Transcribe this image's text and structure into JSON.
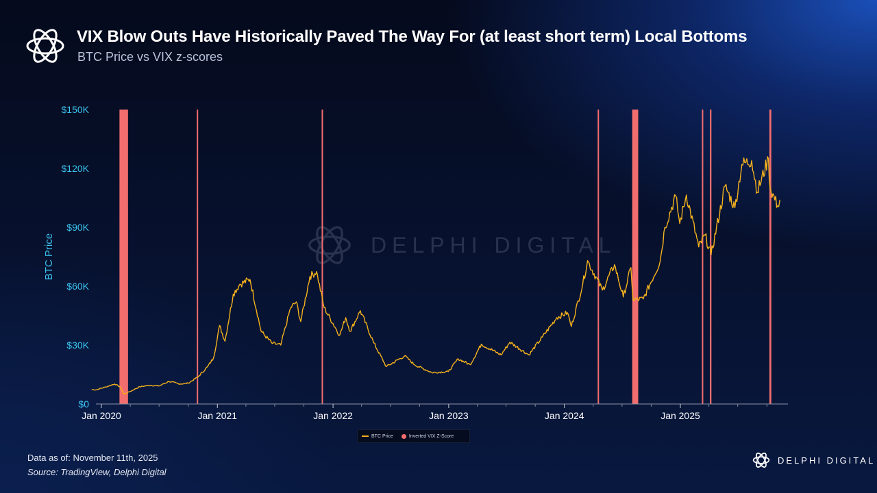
{
  "header": {
    "title": "VIX Blow Outs Have Historically Paved The Way For (at least short term) Local Bottoms",
    "subtitle": "BTC Price vs VIX z-scores"
  },
  "watermark": {
    "text": "DELPHI DIGITAL",
    "icon": "delphi-logo-icon"
  },
  "brand": {
    "name": "DELPHI DIGITAL",
    "icon": "delphi-logo-icon"
  },
  "footer": {
    "as_of": "Data as of: November 11th, 2025",
    "source": "Source: TradingView, Delphi Digital"
  },
  "colors": {
    "price_line": "#f5b21c",
    "vix_highlight": "#f26d6d",
    "axis_text": "#3cc4f0",
    "tick_text": "#ffffff"
  },
  "chart_data": {
    "type": "line",
    "ylabel": "BTC Price",
    "ylim": [
      0,
      150000
    ],
    "yticks": [
      0,
      30000,
      60000,
      90000,
      120000,
      150000
    ],
    "ytick_labels": [
      "$0",
      "$30K",
      "$60K",
      "$90K",
      "$120K",
      "$150K"
    ],
    "xlim": [
      "2019-12-01",
      "2025-12-01"
    ],
    "xticks": [
      "2020-01-01",
      "2021-01-01",
      "2022-01-01",
      "2023-01-01",
      "2024-01-01",
      "2025-01-01"
    ],
    "xtick_labels": [
      "Jan 2020",
      "Jan 2021",
      "Jan 2022",
      "Jan 2023",
      "Jan 2024",
      "Jan 2025"
    ],
    "grid": false,
    "legend_position": "bottom-center",
    "series": [
      {
        "name": "BTC Price",
        "type": "line",
        "points": [
          [
            "2019-12-01",
            7300
          ],
          [
            "2019-12-15",
            7200
          ],
          [
            "2020-01-15",
            8700
          ],
          [
            "2020-02-12",
            10200
          ],
          [
            "2020-03-01",
            8600
          ],
          [
            "2020-03-12",
            5000
          ],
          [
            "2020-04-01",
            6400
          ],
          [
            "2020-05-01",
            8800
          ],
          [
            "2020-06-01",
            9500
          ],
          [
            "2020-07-01",
            9200
          ],
          [
            "2020-08-01",
            11500
          ],
          [
            "2020-09-05",
            10200
          ],
          [
            "2020-10-01",
            10600
          ],
          [
            "2020-11-01",
            13800
          ],
          [
            "2020-12-01",
            19000
          ],
          [
            "2020-12-20",
            23500
          ],
          [
            "2021-01-08",
            40000
          ],
          [
            "2021-01-25",
            32000
          ],
          [
            "2021-02-20",
            56000
          ],
          [
            "2021-03-13",
            61000
          ],
          [
            "2021-04-14",
            63500
          ],
          [
            "2021-05-19",
            37000
          ],
          [
            "2021-06-22",
            31000
          ],
          [
            "2021-07-20",
            30000
          ],
          [
            "2021-08-20",
            49000
          ],
          [
            "2021-09-07",
            52000
          ],
          [
            "2021-09-21",
            42000
          ],
          [
            "2021-10-20",
            65000
          ],
          [
            "2021-11-10",
            67500
          ],
          [
            "2021-12-04",
            49000
          ],
          [
            "2022-01-22",
            35000
          ],
          [
            "2022-02-10",
            44000
          ],
          [
            "2022-02-24",
            37000
          ],
          [
            "2022-03-28",
            47500
          ],
          [
            "2022-05-10",
            31000
          ],
          [
            "2022-06-18",
            19000
          ],
          [
            "2022-08-15",
            24500
          ],
          [
            "2022-09-15",
            20000
          ],
          [
            "2022-11-09",
            16000
          ],
          [
            "2022-12-31",
            16500
          ],
          [
            "2023-01-31",
            23000
          ],
          [
            "2023-03-10",
            20000
          ],
          [
            "2023-04-14",
            30500
          ],
          [
            "2023-06-15",
            25000
          ],
          [
            "2023-07-13",
            31500
          ],
          [
            "2023-09-11",
            25000
          ],
          [
            "2023-10-23",
            34000
          ],
          [
            "2023-12-08",
            44000
          ],
          [
            "2024-01-11",
            46500
          ],
          [
            "2024-01-23",
            39500
          ],
          [
            "2024-02-28",
            61000
          ],
          [
            "2024-03-14",
            73000
          ],
          [
            "2024-04-30",
            58000
          ],
          [
            "2024-06-07",
            71000
          ],
          [
            "2024-07-05",
            54500
          ],
          [
            "2024-07-29",
            69500
          ],
          [
            "2024-08-05",
            53000
          ],
          [
            "2024-09-06",
            53500
          ],
          [
            "2024-10-29",
            72500
          ],
          [
            "2024-11-13",
            90000
          ],
          [
            "2024-12-17",
            106000
          ],
          [
            "2024-12-30",
            92000
          ],
          [
            "2025-01-20",
            106500
          ],
          [
            "2025-02-28",
            80000
          ],
          [
            "2025-03-20",
            86000
          ],
          [
            "2025-04-08",
            76000
          ],
          [
            "2025-05-22",
            111000
          ],
          [
            "2025-06-22",
            100000
          ],
          [
            "2025-07-14",
            122000
          ],
          [
            "2025-08-14",
            124000
          ],
          [
            "2025-09-01",
            108000
          ],
          [
            "2025-10-06",
            125000
          ],
          [
            "2025-10-11",
            110000
          ],
          [
            "2025-11-04",
            101000
          ],
          [
            "2025-11-11",
            104000
          ]
        ]
      },
      {
        "name": "Inverted VIX Z-Score",
        "type": "highlight-bands",
        "periods": [
          [
            "2020-02-27",
            "2020-03-25"
          ],
          [
            "2020-10-28",
            "2020-10-30"
          ],
          [
            "2021-11-26",
            "2021-11-30"
          ],
          [
            "2024-04-15",
            "2024-04-17"
          ],
          [
            "2024-08-02",
            "2024-08-21"
          ],
          [
            "2025-03-10",
            "2025-03-14"
          ],
          [
            "2025-04-04",
            "2025-04-09"
          ],
          [
            "2025-10-09",
            "2025-10-15"
          ]
        ]
      }
    ]
  }
}
